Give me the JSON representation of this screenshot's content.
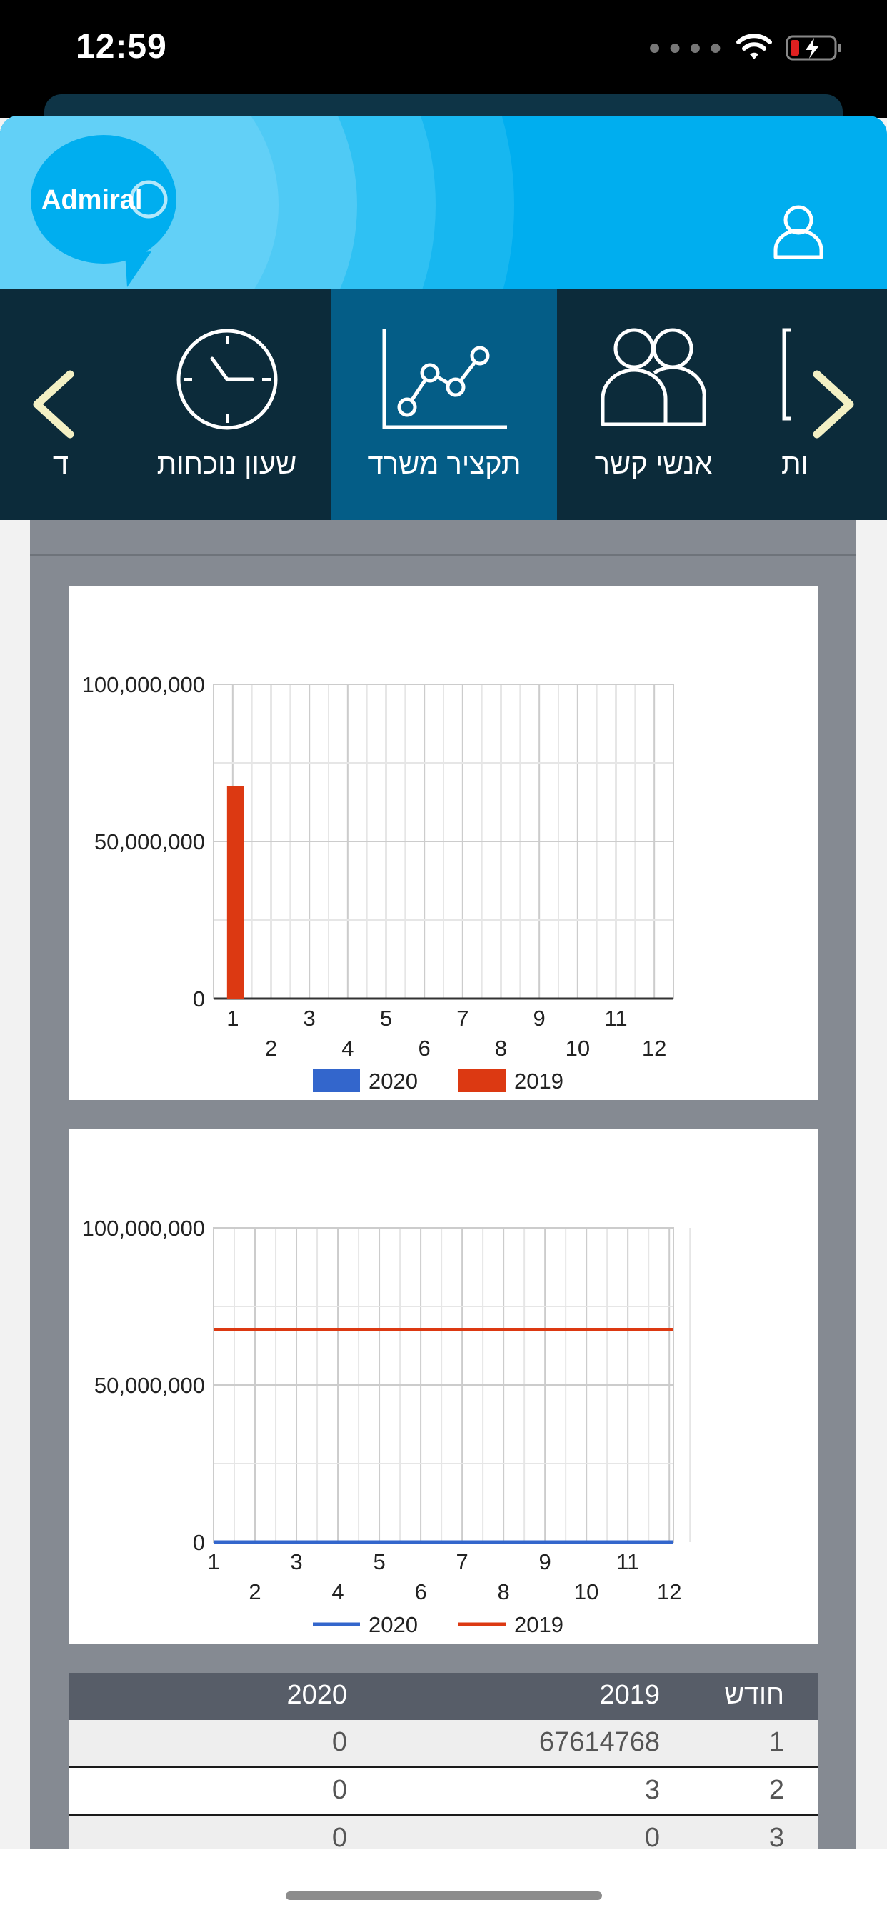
{
  "status_bar": {
    "time": "12:59",
    "signal_icon": "signal-dots-icon",
    "wifi_icon": "wifi-icon",
    "battery_icon": "battery-charging-icon"
  },
  "header": {
    "logo_text": "Admiral",
    "user_icon": "user-icon",
    "brand_color": "#00aeef"
  },
  "nav": {
    "items": [
      {
        "label": "ד",
        "icon": "partial-icon"
      },
      {
        "label": "שעון נוכחות",
        "icon": "clock-icon"
      },
      {
        "label": "תקציר משרד",
        "icon": "line-chart-icon",
        "active": true
      },
      {
        "label": "אנשי קשר",
        "icon": "contacts-icon"
      },
      {
        "label": "ות",
        "icon": "partial-icon"
      }
    ],
    "prev_icon": "chevron-left-icon",
    "next_icon": "chevron-right-icon"
  },
  "charts": {
    "y_ticks": [
      "100,000,000",
      "50,000,000",
      "0"
    ],
    "x_ticks": [
      "1",
      "2",
      "3",
      "4",
      "5",
      "6",
      "7",
      "8",
      "9",
      "10",
      "11",
      "12"
    ]
  },
  "chart_data": [
    {
      "type": "bar",
      "categories": [
        "1",
        "2",
        "3",
        "4",
        "5",
        "6",
        "7",
        "8",
        "9",
        "10",
        "11",
        "12"
      ],
      "series": [
        {
          "name": "2020",
          "color": "#3366cc",
          "values": [
            0,
            0,
            0,
            0,
            0,
            0,
            0,
            0,
            0,
            0,
            0,
            0
          ]
        },
        {
          "name": "2019",
          "color": "#dc3912",
          "values": [
            67614768,
            3,
            0,
            0,
            0,
            0,
            0,
            0,
            0,
            0,
            0,
            0
          ]
        }
      ],
      "ylim": [
        0,
        100000000
      ],
      "grid": true,
      "legend": "bottom"
    },
    {
      "type": "line",
      "x": [
        1,
        2,
        3,
        4,
        5,
        6,
        7,
        8,
        9,
        10,
        11,
        12
      ],
      "series": [
        {
          "name": "2020",
          "color": "#3366cc",
          "values": [
            0,
            0,
            0,
            0,
            0,
            0,
            0,
            0,
            0,
            0,
            0,
            0
          ]
        },
        {
          "name": "2019",
          "color": "#dc3912",
          "values": [
            67614768,
            67614771,
            67614771,
            67614771,
            67614771,
            67614771,
            67614771,
            67614771,
            67614771,
            67614771,
            67614771,
            67614771
          ]
        }
      ],
      "ylim": [
        0,
        100000000
      ],
      "grid": true,
      "legend": "bottom"
    }
  ],
  "table": {
    "headers": {
      "month": "חודש",
      "y2019": "2019",
      "y2020": "2020"
    },
    "rows": [
      {
        "month": "1",
        "y2019": "67614768",
        "y2020": "0"
      },
      {
        "month": "2",
        "y2019": "3",
        "y2020": "0"
      },
      {
        "month": "3",
        "y2019": "0",
        "y2020": "0"
      }
    ]
  }
}
